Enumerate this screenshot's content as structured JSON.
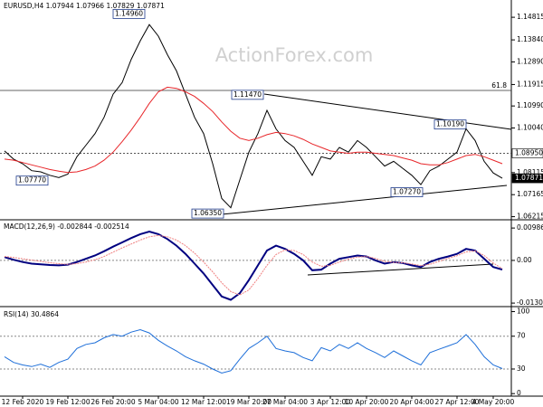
{
  "chart_data": [
    {
      "type": "line",
      "title": "EURUSD,H4  1.07944 1.07966 1.07829 1.07871",
      "watermark": "ActionForex.com",
      "fib_label": "61.8",
      "ylim": [
        1.0612,
        1.1556
      ],
      "yticks": [
        1.06215,
        1.07165,
        1.08115,
        {
          "value": 1.1004,
          "label": "1.10040"
        },
        {
          "value": 1.1099,
          "label": "1.10990"
        },
        1.11915,
        {
          "value": 1.1289,
          "label": "1.12890"
        },
        {
          "value": 1.1384,
          "label": "1.13840"
        },
        1.14815
      ],
      "levels": [
        {
          "value": 1.0895,
          "label": "1.08950"
        },
        1.07871
      ],
      "annotations": [
        {
          "value": 1.1496,
          "label": "1.14960"
        },
        {
          "value": 1.0777,
          "label": "1.07770"
        },
        {
          "value": 1.0635,
          "label": "1.06350"
        },
        {
          "value": 1.1147,
          "label": "1.11470"
        },
        {
          "value": 1.1019,
          "label": "1.10190"
        },
        {
          "value": 1.0727,
          "label": "1.07270"
        }
      ],
      "series": [
        {
          "color": "#000000",
          "values": [
            1.0905,
            1.087,
            1.085,
            1.082,
            1.0815,
            1.08,
            1.079,
            1.0805,
            1.088,
            1.093,
            1.098,
            1.105,
            1.115,
            1.12,
            1.13,
            1.138,
            1.145,
            1.14,
            1.132,
            1.125,
            1.115,
            1.105,
            1.098,
            1.085,
            1.07,
            1.066,
            1.078,
            1.09,
            1.098,
            1.108,
            1.1,
            1.095,
            1.092,
            1.086,
            1.08,
            1.088,
            1.087,
            1.092,
            1.09,
            1.095,
            1.092,
            1.088,
            1.084,
            1.086,
            1.083,
            1.08,
            1.076,
            1.082,
            1.084,
            1.087,
            1.09,
            1.1,
            1.095,
            1.086,
            1.081,
            1.0787
          ]
        },
        {
          "color": "#e8262a",
          "values": [
            1.087,
            1.0865,
            1.0855,
            1.0845,
            1.0835,
            1.0825,
            1.0818,
            1.0812,
            1.0815,
            1.0825,
            1.084,
            1.0865,
            1.09,
            1.0945,
            1.0995,
            1.105,
            1.111,
            1.116,
            1.118,
            1.1175,
            1.116,
            1.114,
            1.111,
            1.1075,
            1.103,
            1.099,
            1.096,
            1.095,
            1.096,
            1.0975,
            1.0985,
            1.098,
            1.097,
            1.0955,
            1.0935,
            1.092,
            1.0905,
            1.09,
            1.0895,
            1.09,
            1.09,
            1.0895,
            1.089,
            1.0885,
            1.0875,
            1.0865,
            1.085,
            1.0845,
            1.0845,
            1.0855,
            1.087,
            1.0885,
            1.089,
            1.088,
            1.0865,
            1.085
          ]
        }
      ]
    },
    {
      "type": "line",
      "title": "MACD(12,26,9) -0.002844 -0.002514",
      "ylim": [
        -0.0138,
        0.0121
      ],
      "yticks": [
        0.009862,
        {
          "value": 0,
          "label": "0.00"
        },
        -0.013002
      ],
      "series": [
        {
          "color": "#000080",
          "values": [
            0.001,
            0.0002,
            -0.0005,
            -0.001,
            -0.0012,
            -0.0014,
            -0.0015,
            -0.0013,
            -0.0005,
            0.0005,
            0.0015,
            0.0028,
            0.0042,
            0.0055,
            0.0068,
            0.008,
            0.0088,
            0.008,
            0.0065,
            0.0045,
            0.002,
            -0.001,
            -0.004,
            -0.0075,
            -0.011,
            -0.012,
            -0.01,
            -0.006,
            -0.0015,
            0.003,
            0.0045,
            0.0035,
            0.002,
            0.0,
            -0.003,
            -0.0028,
            -0.001,
            0.0005,
            0.001,
            0.0015,
            0.0012,
            0.0,
            -0.001,
            -0.0005,
            -0.0008,
            -0.0015,
            -0.002,
            -0.0005,
            0.0005,
            0.0012,
            0.002,
            0.0035,
            0.003,
            0.0005,
            -0.002,
            -0.0028
          ]
        },
        {
          "color": "#f08080",
          "values": [
            0.0012,
            0.0009,
            0.0005,
            0.0001,
            -0.0003,
            -0.0007,
            -0.001,
            -0.0012,
            -0.001,
            -0.0005,
            0.0002,
            0.0012,
            0.0025,
            0.0038,
            0.005,
            0.0062,
            0.0072,
            0.0076,
            0.0072,
            0.0062,
            0.0045,
            0.0022,
            -0.0005,
            -0.0035,
            -0.0068,
            -0.0095,
            -0.0105,
            -0.009,
            -0.0055,
            -0.0015,
            0.0018,
            0.0032,
            0.003,
            0.0018,
            -0.0005,
            -0.0018,
            -0.0015,
            -0.0005,
            0.0004,
            0.001,
            0.0012,
            0.0006,
            -0.0003,
            -0.0006,
            -0.0007,
            -0.0011,
            -0.0016,
            -0.0012,
            -0.0003,
            0.0006,
            0.0014,
            0.0026,
            0.0029,
            0.0015,
            -0.0008,
            -0.0025
          ]
        }
      ]
    },
    {
      "type": "line",
      "title": "RSI(14) 30.4864",
      "ylim": [
        -2,
        105
      ],
      "yticks": [
        100,
        70,
        30,
        0
      ],
      "dotted": [
        70,
        30
      ],
      "categories": [
        null,
        null,
        "12 Feb 2020",
        null,
        null,
        null,
        null,
        "19 Feb 12:00",
        null,
        null,
        null,
        null,
        "26 Feb 20:00",
        null,
        null,
        null,
        null,
        "5 Mar 04:00",
        null,
        null,
        null,
        null,
        "12 Mar 12:00",
        null,
        null,
        null,
        null,
        "19 Mar 20:00",
        null,
        null,
        null,
        "27 Mar 04:00",
        null,
        null,
        null,
        null,
        "3 Apr 12:00",
        null,
        null,
        null,
        "10 Apr 20:00",
        null,
        null,
        null,
        null,
        "20 Apr 04:00",
        null,
        null,
        null,
        null,
        "27 Apr 12:00",
        null,
        null,
        null,
        "4 May 20:00",
        null
      ],
      "series": [
        {
          "color": "#1e6fd9",
          "values": [
            45,
            38,
            35,
            33,
            36,
            32,
            38,
            42,
            55,
            60,
            62,
            68,
            72,
            70,
            75,
            78,
            74,
            65,
            58,
            52,
            45,
            40,
            36,
            30,
            25,
            28,
            42,
            55,
            62,
            70,
            55,
            52,
            50,
            44,
            40,
            56,
            52,
            60,
            55,
            62,
            55,
            50,
            44,
            52,
            46,
            40,
            35,
            50,
            54,
            58,
            62,
            72,
            60,
            45,
            35,
            30.5
          ]
        }
      ]
    }
  ]
}
